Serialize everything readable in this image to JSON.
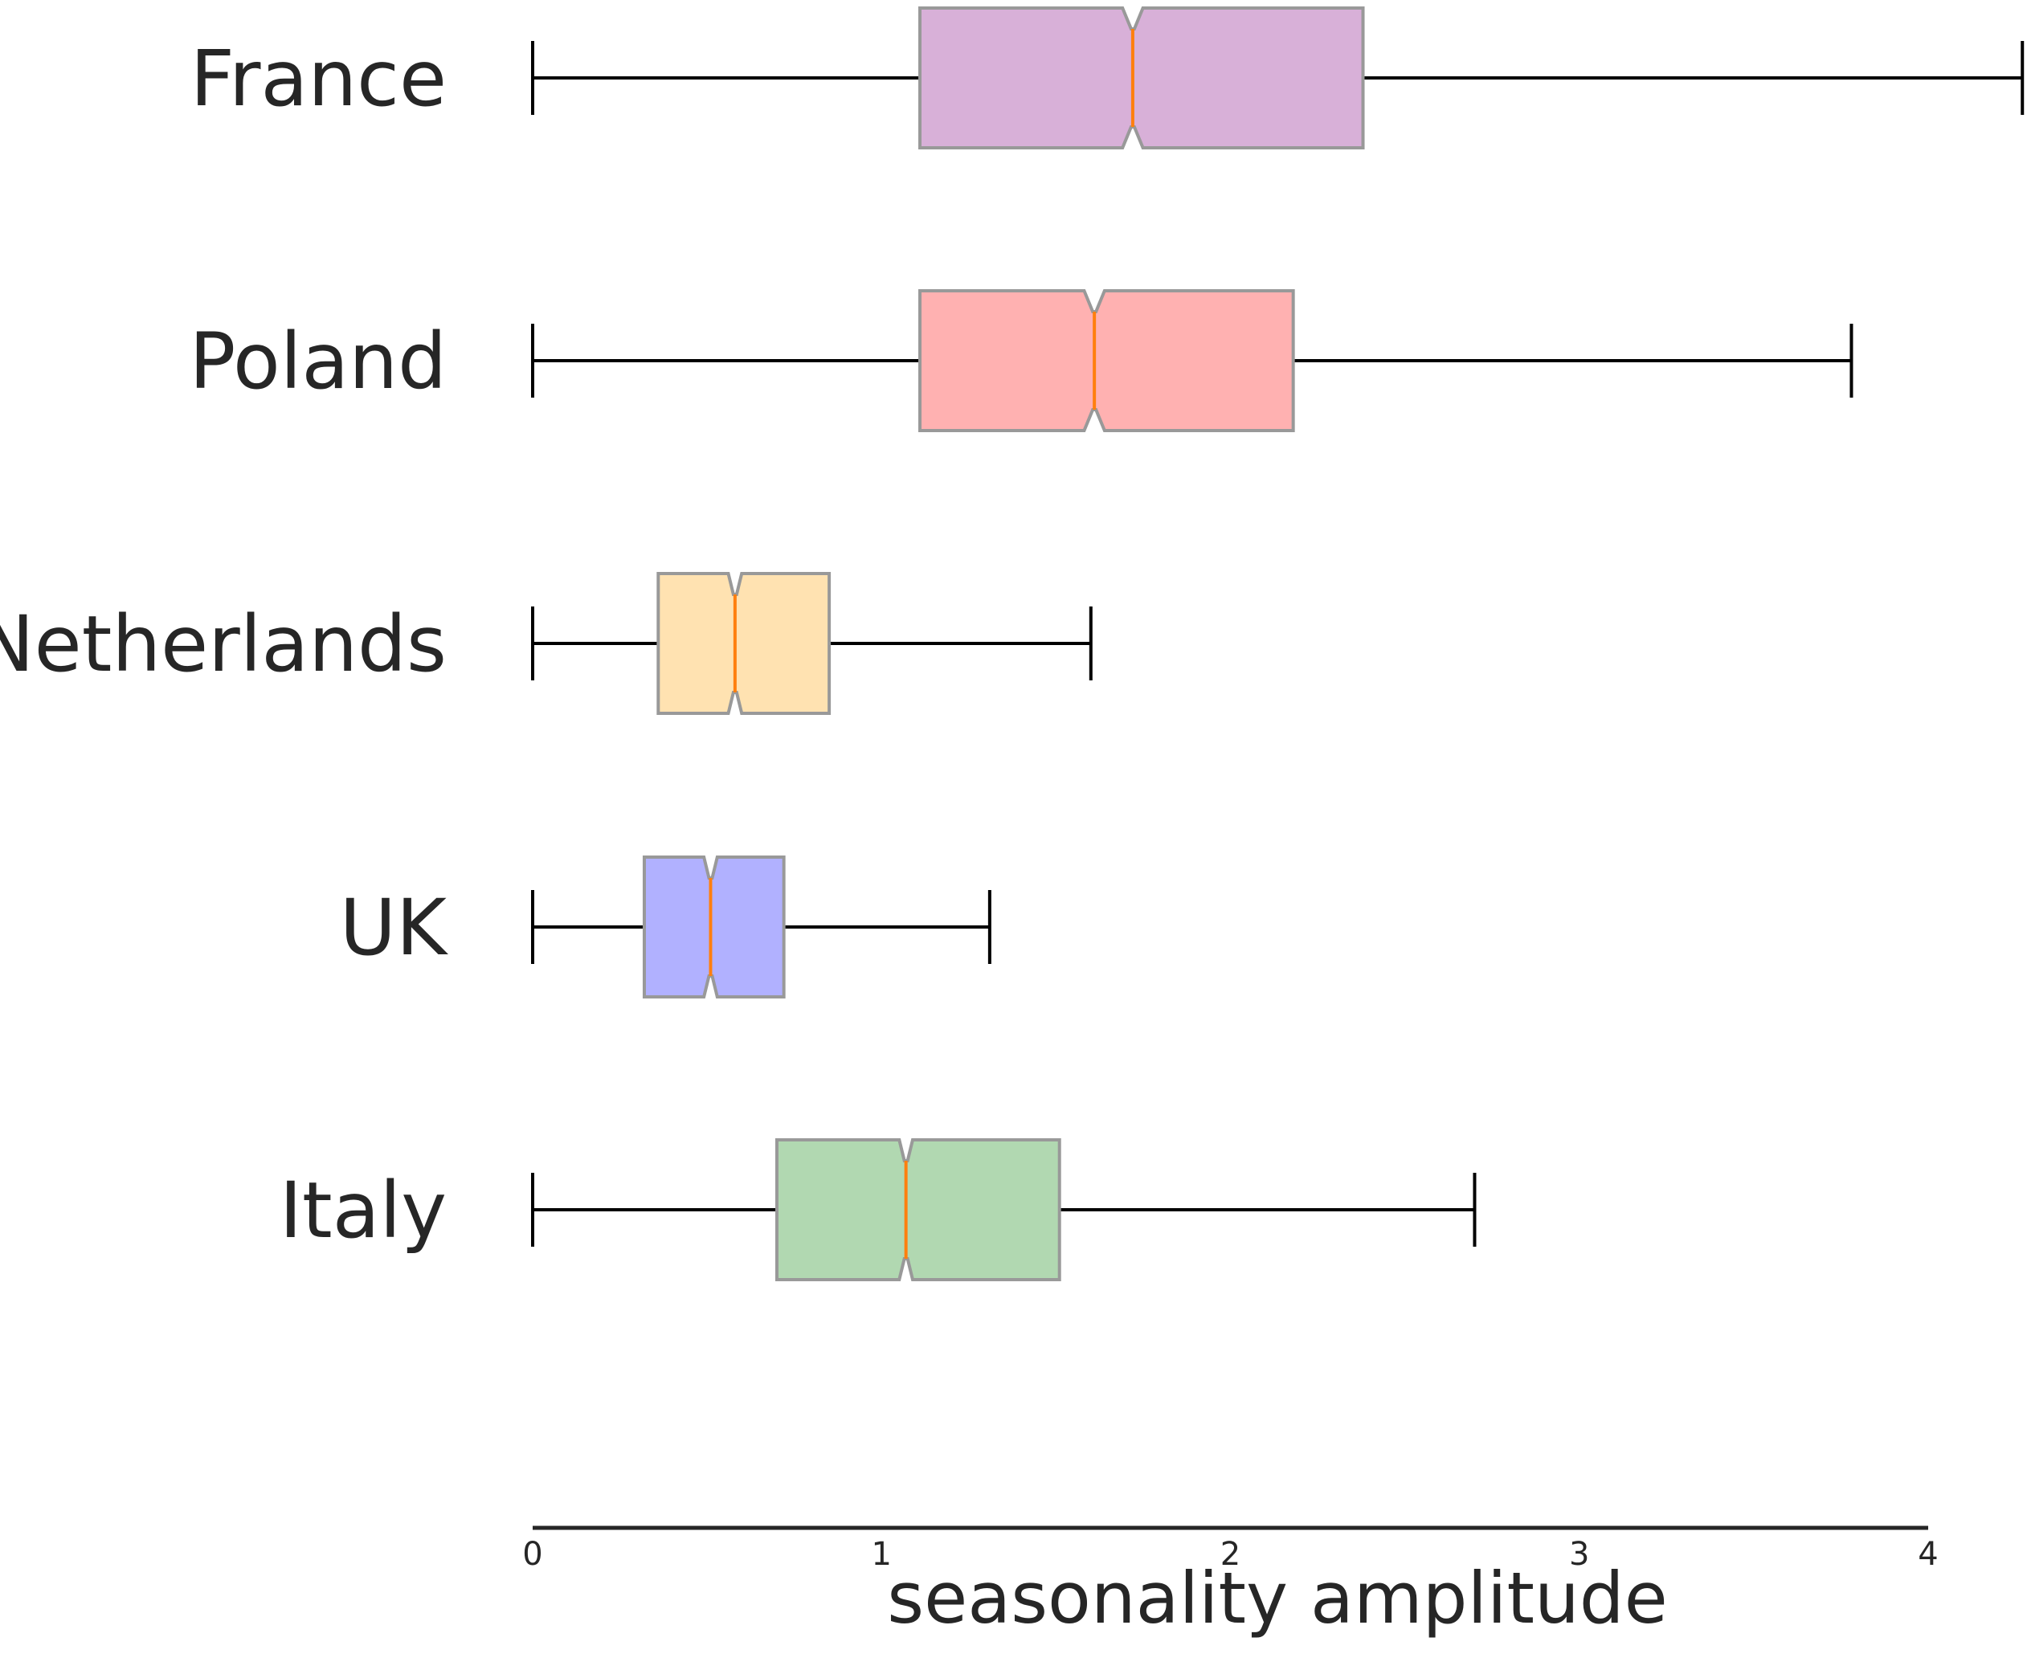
{
  "chart_data": {
    "type": "boxplot",
    "orientation": "horizontal",
    "notched": true,
    "xlabel": "seasonality amplitude",
    "xlim": [
      0,
      4
    ],
    "xticks": [
      0,
      1,
      2,
      3,
      4
    ],
    "grid": false,
    "series": [
      {
        "name": "France",
        "color": "#d8b0d8",
        "whisker_low": 0.0,
        "q1": 1.11,
        "median": 1.72,
        "q3": 2.38,
        "whisker_high": 4.27,
        "notch_low": 1.7,
        "notch_high": 1.74
      },
      {
        "name": "Poland",
        "color": "#ffb1b1",
        "whisker_low": 0.0,
        "q1": 1.11,
        "median": 1.61,
        "q3": 2.18,
        "whisker_high": 3.78,
        "notch_low": 1.59,
        "notch_high": 1.63
      },
      {
        "name": "Netherlands",
        "color": "#ffe2b1",
        "whisker_low": 0.0,
        "q1": 0.36,
        "median": 0.58,
        "q3": 0.85,
        "whisker_high": 1.6,
        "notch_low": 0.57,
        "notch_high": 0.59
      },
      {
        "name": "UK",
        "color": "#b1b1ff",
        "whisker_low": 0.0,
        "q1": 0.32,
        "median": 0.51,
        "q3": 0.72,
        "whisker_high": 1.31,
        "notch_low": 0.5,
        "notch_high": 0.52
      },
      {
        "name": "Italy",
        "color": "#b1d8b1",
        "whisker_low": 0.0,
        "q1": 0.7,
        "median": 1.07,
        "q3": 1.51,
        "whisker_high": 2.7,
        "notch_low": 1.06,
        "notch_high": 1.08
      }
    ],
    "colors": {
      "median_line": "#ff7f0e",
      "box_edge": "#999999",
      "whisker": "#000000",
      "axis": "#262626"
    }
  }
}
